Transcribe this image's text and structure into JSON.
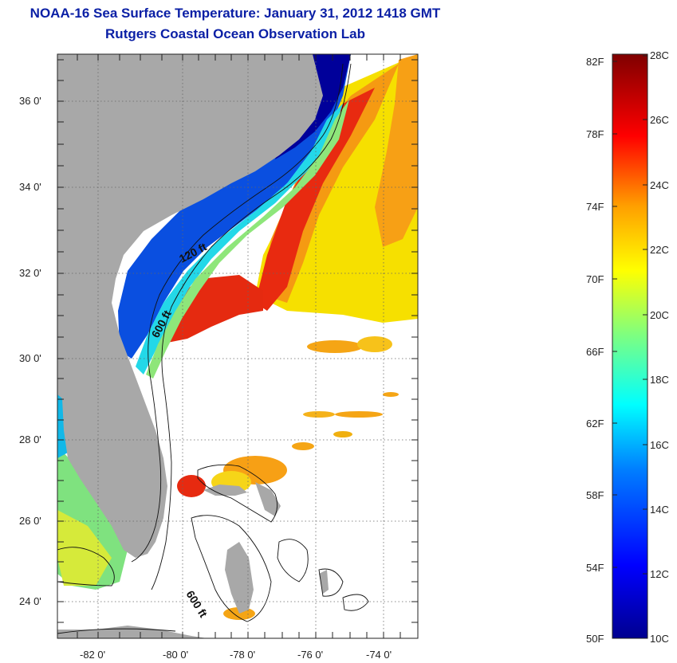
{
  "header": {
    "title": "NOAA-16 Sea Surface Temperature:  January 31, 2012 1418 GMT",
    "subtitle": "Rutgers Coastal Ocean Observation Lab"
  },
  "map": {
    "lat_ticks": [
      "36 0'",
      "34 0'",
      "32 0'",
      "30 0'",
      "28 0'",
      "26 0'",
      "24 0'"
    ],
    "lon_ticks": [
      "-82 0'",
      "-80 0'",
      "-78 0'",
      "-76 0'",
      "-74 0'"
    ],
    "contour_labels": [
      "120 ft",
      "600 ft",
      "600 ft"
    ],
    "colors": {
      "land": "#a8a8a8",
      "no_data": "#ffffff"
    }
  },
  "colorbar": {
    "fahrenheit_labels": [
      "82F",
      "78F",
      "74F",
      "70F",
      "66F",
      "62F",
      "58F",
      "54F",
      "50F"
    ],
    "celsius_labels": [
      "28C",
      "26C",
      "24C",
      "22C",
      "20C",
      "18C",
      "16C",
      "14C",
      "12C",
      "10C"
    ],
    "colors": [
      "#00008f",
      "#0000ff",
      "#007fff",
      "#00ffff",
      "#7fff7f",
      "#ffff00",
      "#ff7f00",
      "#ff0000",
      "#7f0000"
    ]
  }
}
